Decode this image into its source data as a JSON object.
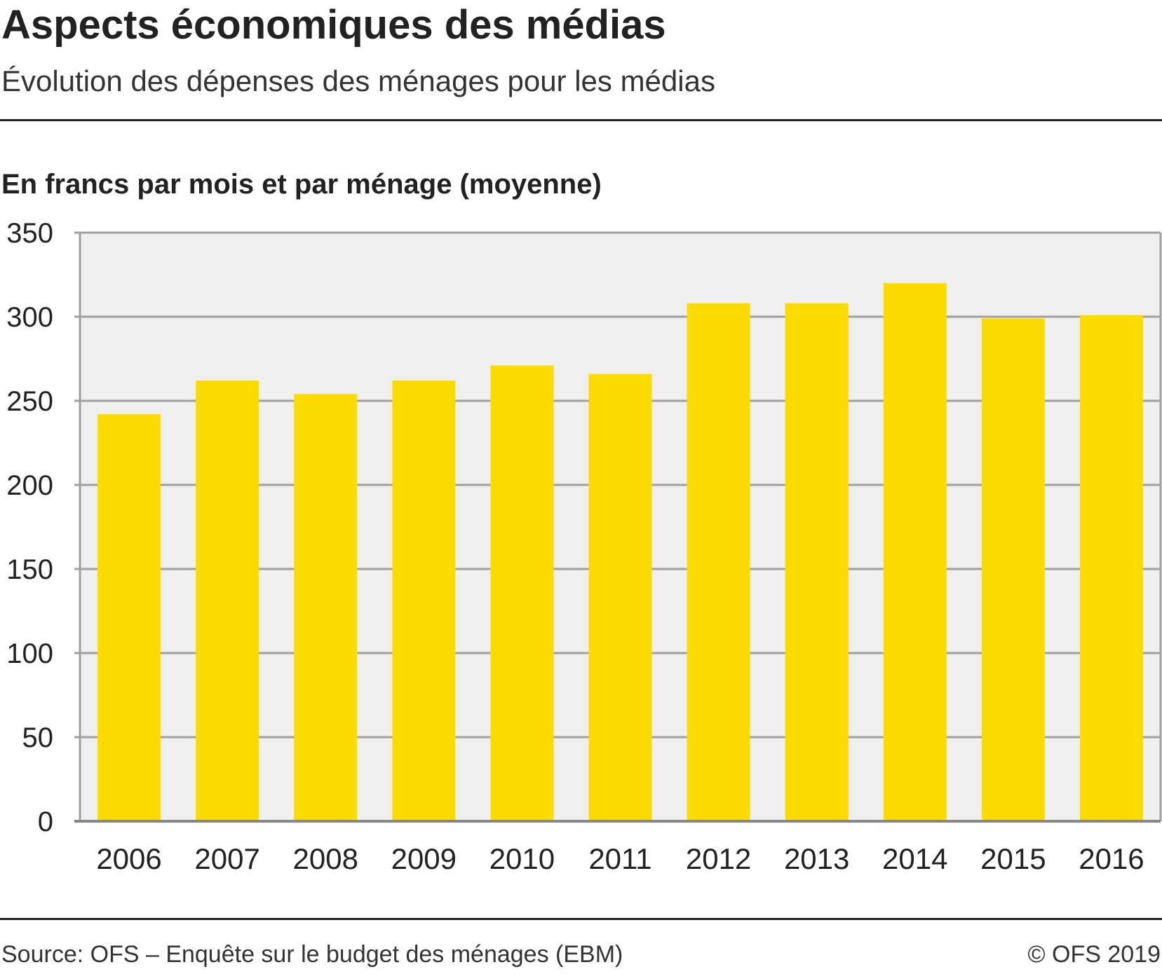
{
  "header": {
    "title": "Aspects économiques des médias",
    "subtitle": "Évolution des dépenses des ménages pour les médias"
  },
  "footer": {
    "source": "Source: OFS – Enquête sur le budget des ménages (EBM)",
    "copyright": "© OFS 2019"
  },
  "colors": {
    "bar": "#FCDB00",
    "plot_background": "#EFEFEF",
    "grid": "#A0A0A0",
    "text": "#222222"
  },
  "chart_data": {
    "type": "bar",
    "ylabel": "En francs par mois et par ménage (moyenne)",
    "categories": [
      "2006",
      "2007",
      "2008",
      "2009",
      "2010",
      "2011",
      "2012",
      "2013",
      "2014",
      "2015",
      "2016"
    ],
    "values": [
      242,
      262,
      254,
      262,
      271,
      266,
      308,
      308,
      320,
      299,
      301
    ],
    "ylim": [
      0,
      350
    ],
    "yticks": [
      0,
      50,
      100,
      150,
      200,
      250,
      300,
      350
    ],
    "grid": true,
    "legend": "none"
  }
}
